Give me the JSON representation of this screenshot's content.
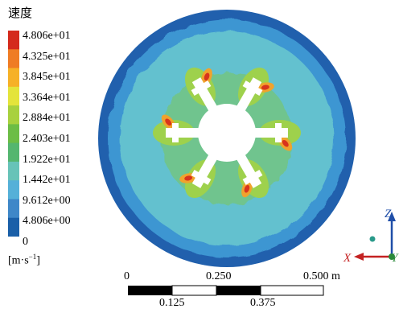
{
  "legend": {
    "title": "速度",
    "ticks": [
      "4.806e+01",
      "4.325e+01",
      "3.845e+01",
      "3.364e+01",
      "2.884e+01",
      "2.403e+01",
      "1.922e+01",
      "1.442e+01",
      "9.612e+00",
      "4.806e+00",
      "0"
    ],
    "unit_base": "[m·s",
    "unit_exp": "−1",
    "unit_close": "]",
    "colors": [
      "#d42a1c",
      "#ef7c24",
      "#f6b127",
      "#e4e43b",
      "#a8d13e",
      "#6cbd45",
      "#54b66f",
      "#67c3b8",
      "#55b0d8",
      "#3f87c8",
      "#1a5fa8"
    ]
  },
  "field": {
    "outer_color": "#2160ad",
    "band2_color": "#3d96d2",
    "main_color": "#64c1cf",
    "inner_ring_color": "#6fc48e",
    "near_color": "#9ed14c",
    "hot_color": "#f0a22d",
    "core_color": "#d8341d",
    "hub_color": "#ffffff",
    "blade_count": 6
  },
  "axes": {
    "z": "Z",
    "x": "X",
    "y": "Y",
    "z_color": "#1f4ea8",
    "x_color": "#c42222",
    "y_color": "#2a8a3a",
    "dot_color": "#2a9a8a"
  },
  "scale": {
    "top_labels": [
      "0",
      "0.250",
      "0.500 m"
    ],
    "bottom_labels": [
      "0.125",
      "0.375"
    ]
  }
}
